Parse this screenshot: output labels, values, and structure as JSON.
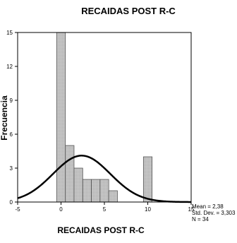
{
  "chart_data": {
    "type": "bar",
    "title": "RECAIDAS POST R-C",
    "xlabel": "RECAIDAS POST R-C",
    "ylabel": "Frecuencia",
    "xlim": [
      -5,
      15
    ],
    "ylim": [
      0,
      15
    ],
    "x_ticks": [
      "-5",
      "0",
      "5",
      "10",
      "15"
    ],
    "y_ticks": [
      "0",
      "3",
      "6",
      "9",
      "12",
      "15"
    ],
    "bin_width": 1,
    "bins": [
      {
        "x": 0,
        "value": 15
      },
      {
        "x": 1,
        "value": 5
      },
      {
        "x": 2,
        "value": 3
      },
      {
        "x": 3,
        "value": 2
      },
      {
        "x": 4,
        "value": 2
      },
      {
        "x": 5,
        "value": 2
      },
      {
        "x": 6,
        "value": 1
      },
      {
        "x": 7,
        "value": 0
      },
      {
        "x": 8,
        "value": 0
      },
      {
        "x": 9,
        "value": 0
      },
      {
        "x": 10,
        "value": 4
      }
    ],
    "normal_curve": {
      "mean": 2.38,
      "sd": 3.303,
      "n": 34
    },
    "stats": {
      "mean": "Mean = 2,38",
      "std_dev": "Std. Dev. = 3,303",
      "n": "N = 34"
    },
    "bar_color": "#c8c8c8",
    "grid": false
  }
}
